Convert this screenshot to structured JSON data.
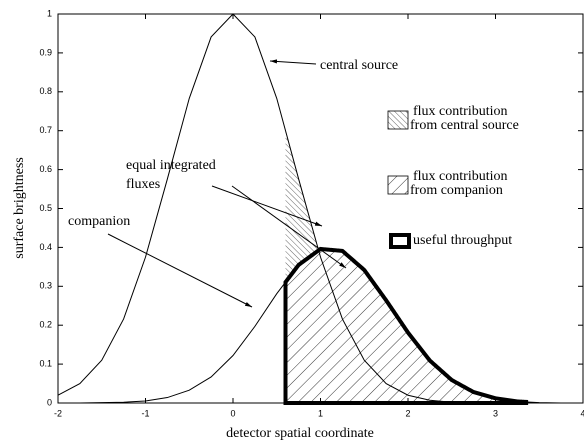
{
  "chart_data": {
    "type": "line",
    "xlabel": "detector spatial coordinate",
    "ylabel": "surface brightness",
    "x": [
      -2,
      -1.75,
      -1.5,
      -1.25,
      -1,
      -0.75,
      -0.5,
      -0.25,
      0,
      0.25,
      0.5,
      0.75,
      1,
      1.25,
      1.5,
      1.75,
      2,
      2.25,
      2.5,
      2.75,
      3,
      3.25,
      3.5,
      3.75,
      4
    ],
    "series": [
      {
        "name": "central source",
        "color": "#000000",
        "values": [
          0.02,
          0.05,
          0.11,
          0.216,
          0.375,
          0.576,
          0.783,
          0.941,
          1,
          0.941,
          0.783,
          0.576,
          0.375,
          0.216,
          0.11,
          0.05,
          0.02,
          0.007,
          0.002,
          0.001,
          0,
          0,
          0,
          0,
          0
        ]
      },
      {
        "name": "companion",
        "color": "#000000",
        "values": [
          0,
          0,
          0.001,
          0.002,
          0.005,
          0.014,
          0.033,
          0.067,
          0.122,
          0.197,
          0.281,
          0.355,
          0.396,
          0.391,
          0.342,
          0.264,
          0.181,
          0.109,
          0.059,
          0.028,
          0.012,
          0.004,
          0.001,
          0,
          0
        ]
      }
    ],
    "aperture_xlim": [
      0.6,
      3.35
    ],
    "annotations": {
      "equal_fluxes": [
        "equal integrated",
        "fluxes"
      ]
    },
    "legend": [
      {
        "lines": [
          "flux contribution",
          "from central source"
        ],
        "style": "hatch-central"
      },
      {
        "lines": [
          "flux contribution",
          "from companion"
        ],
        "style": "hatch-companion"
      },
      {
        "lines": [
          "useful throughput"
        ],
        "style": "thick"
      }
    ],
    "xlim": [
      -2,
      4
    ],
    "xticks": [
      -2,
      -1,
      0,
      1,
      2,
      3,
      4
    ],
    "ylim": [
      0,
      1
    ],
    "yticks": [
      0,
      0.1,
      0.2,
      0.3,
      0.4,
      0.5,
      0.6,
      0.7,
      0.8,
      0.9,
      1
    ],
    "grid": false
  }
}
